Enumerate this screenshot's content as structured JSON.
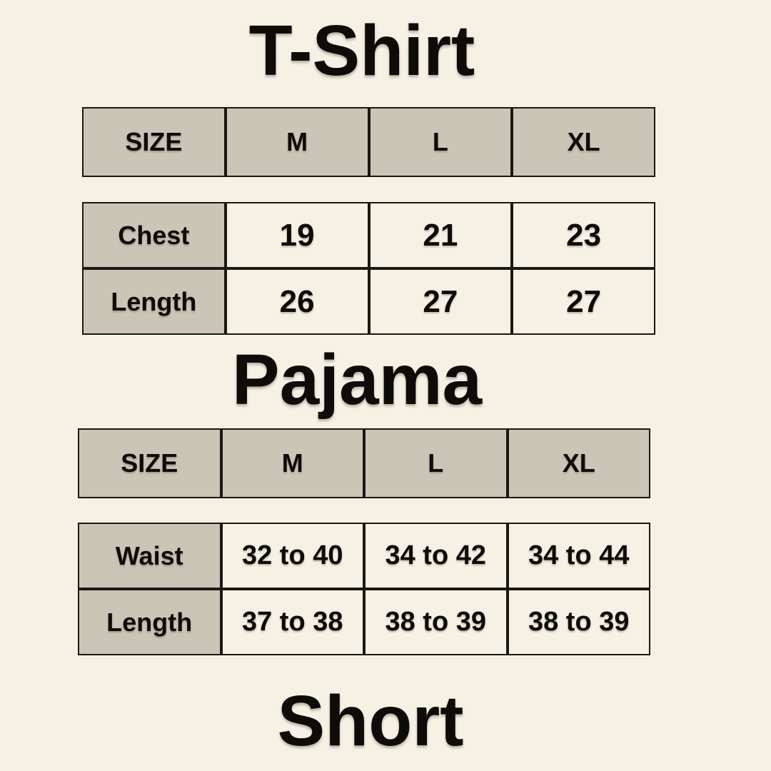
{
  "colors": {
    "page_background": "#f5f1e4",
    "header_cell_fill": "#cbc5b8",
    "value_cell_fill": "#f5f1e4",
    "table_border": "#1a1813",
    "text": "#0d0c09"
  },
  "sections": [
    {
      "title": "T-Shirt",
      "size_header": [
        "SIZE",
        "M",
        "L",
        "XL"
      ],
      "rows": [
        {
          "label": "Chest",
          "values": [
            "19",
            "21",
            "23"
          ]
        },
        {
          "label": "Length",
          "values": [
            "26",
            "27",
            "27"
          ]
        }
      ]
    },
    {
      "title": "Pajama",
      "size_header": [
        "SIZE",
        "M",
        "L",
        "XL"
      ],
      "rows": [
        {
          "label": "Waist",
          "values": [
            "32 to 40",
            "34 to 42",
            "34 to 44"
          ]
        },
        {
          "label": "Length",
          "values": [
            "37 to 38",
            "38 to 39",
            "38 to 39"
          ]
        }
      ]
    },
    {
      "title": "Short",
      "size_header": [],
      "rows": []
    }
  ]
}
